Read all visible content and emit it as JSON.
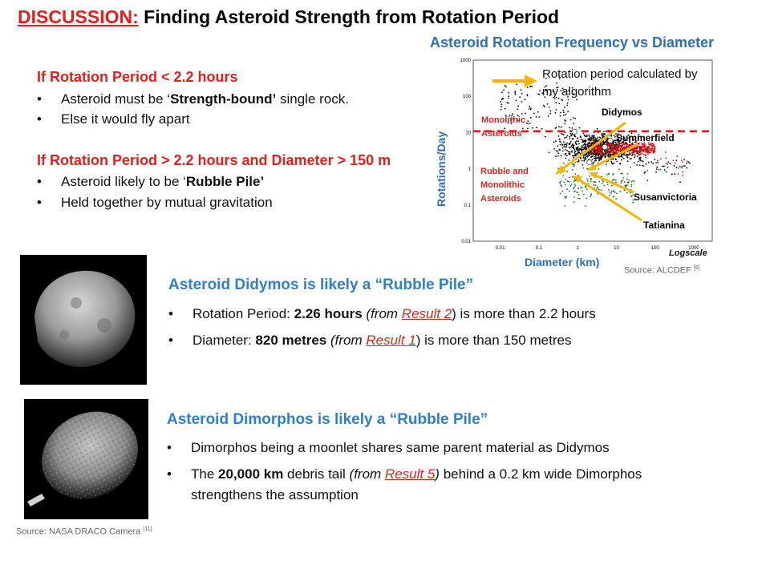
{
  "title": {
    "prefix": "DISCUSSION:",
    "text": " Finding Asteroid Strength from Rotation Period"
  },
  "rule1": {
    "heading": "If Rotation Period < 2.2 hours",
    "b1_pre": "Asteroid must be ‘",
    "b1_bold": "Strength-bound’",
    "b1_post": "  single rock.",
    "b2": "Else it would fly apart"
  },
  "rule2": {
    "heading": "If Rotation Period > 2.2 hours and Diameter > 150 m",
    "b1_pre": "Asteroid likely to be ‘",
    "b1_bold": "Rubble Pile’",
    "b2": "Held together by mutual gravitation"
  },
  "chart": {
    "title": "Asteroid Rotation Frequency vs Diameter",
    "callout": "Rotation period calculated by my algorithm",
    "labels": {
      "didymos": "Didymos",
      "summerfield": "Summerfield",
      "susanvictoria": "Susanvictoria",
      "tatianina": "Tatianina",
      "monolithic": "Monolithic Asteroids",
      "rubble": "Rubble and Monolithic Asteroids",
      "logscale": "Logscale"
    },
    "ylabel": "Rotations/Day",
    "xlabel": "Diameter (km)",
    "source": "Source: ALCDEF",
    "source_ref": "[6]"
  },
  "chart_data": {
    "type": "scatter",
    "title": "Asteroid Rotation Frequency vs Diameter",
    "xlabel": "Diameter (km)",
    "ylabel": "Rotations/Day",
    "xscale": "log",
    "yscale": "log",
    "x_ticks": [
      "0.01",
      "0.1",
      "1",
      "10",
      "100",
      "1000"
    ],
    "y_ticks": [
      "1000",
      "100",
      "10",
      "1",
      "0.1",
      "0.01"
    ],
    "xlim": [
      0.002,
      3000
    ],
    "ylim": [
      0.01,
      1000
    ],
    "threshold_line": {
      "y": 10.9,
      "style": "red dashed"
    },
    "highlighted": [
      {
        "name": "Didymos",
        "x": 0.82,
        "y": 10.6
      },
      {
        "name": "Summerfield",
        "x": 7,
        "y": 6
      },
      {
        "name": "Susanvictoria",
        "x": 5,
        "y": 4
      },
      {
        "name": "Tatianina",
        "x": 2,
        "y": 1.5
      }
    ],
    "colors": {
      "main": "#000000",
      "red": "#d01010",
      "green": "#1e6e1e"
    }
  },
  "didymos": {
    "heading": "Asteroid Didymos is likely a “Rubble Pile”",
    "b1_pre": "Rotation Period: ",
    "b1_bold": "2.26 hours",
    "b1_mid": "  (from ",
    "b1_link": "Result 2",
    "b1_post": ") is more than 2.2 hours",
    "b2_pre": "Diameter: ",
    "b2_bold": "820 metres",
    "b2_mid": " (from ",
    "b2_link": "Result 1",
    "b2_post": ") is more than 150 metres"
  },
  "dimorphos": {
    "heading": "Asteroid Dimorphos is likely a “Rubble Pile”",
    "b1": "Dimorphos being a moonlet shares same parent material as Didymos",
    "b2_pre": "The ",
    "b2_bold": "20,000 km",
    "b2_mid": " debris tail ",
    "b2_from": "(from ",
    "b2_link": "Result 5",
    "b2_close": ")",
    "b2_post": " behind a 0.2 km wide Dimorphos",
    "b2_line2": "strengthens the assumption"
  },
  "photo_source": {
    "text": "Source: NASA DRACO Camera",
    "ref": "[11]"
  },
  "bullet_char": "•"
}
